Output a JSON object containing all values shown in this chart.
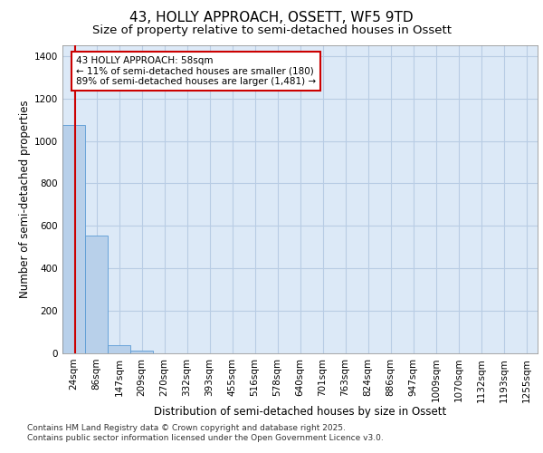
{
  "title": "43, HOLLY APPROACH, OSSETT, WF5 9TD",
  "subtitle": "Size of property relative to semi-detached houses in Ossett",
  "xlabel": "Distribution of semi-detached houses by size in Ossett",
  "ylabel": "Number of semi-detached properties",
  "categories": [
    "24sqm",
    "86sqm",
    "147sqm",
    "209sqm",
    "270sqm",
    "332sqm",
    "393sqm",
    "455sqm",
    "516sqm",
    "578sqm",
    "640sqm",
    "701sqm",
    "763sqm",
    "824sqm",
    "886sqm",
    "947sqm",
    "1009sqm",
    "1070sqm",
    "1132sqm",
    "1193sqm",
    "1255sqm"
  ],
  "bar_heights": [
    1075,
    555,
    38,
    12,
    0,
    0,
    0,
    0,
    0,
    0,
    0,
    0,
    0,
    0,
    0,
    0,
    0,
    0,
    0,
    0,
    0
  ],
  "bar_color": "#b8d0ea",
  "bar_edge_color": "#5b9bd5",
  "ylim": [
    0,
    1450
  ],
  "yticks": [
    0,
    200,
    400,
    600,
    800,
    1000,
    1200,
    1400
  ],
  "background_color": "#dce9f7",
  "grid_color": "#b8cce4",
  "annotation_line1": "43 HOLLY APPROACH: 58sqm",
  "annotation_line2": "← 11% of semi-detached houses are smaller (180)",
  "annotation_line3": "89% of semi-detached houses are larger (1,481) →",
  "annotation_box_color": "#ffffff",
  "annotation_border_color": "#cc0000",
  "vline_x": 0.548,
  "vline_color": "#cc0000",
  "footer_line1": "Contains HM Land Registry data © Crown copyright and database right 2025.",
  "footer_line2": "Contains public sector information licensed under the Open Government Licence v3.0.",
  "title_fontsize": 11,
  "subtitle_fontsize": 9.5,
  "axis_label_fontsize": 8.5,
  "tick_fontsize": 7.5,
  "annotation_fontsize": 7.5,
  "footer_fontsize": 6.5
}
